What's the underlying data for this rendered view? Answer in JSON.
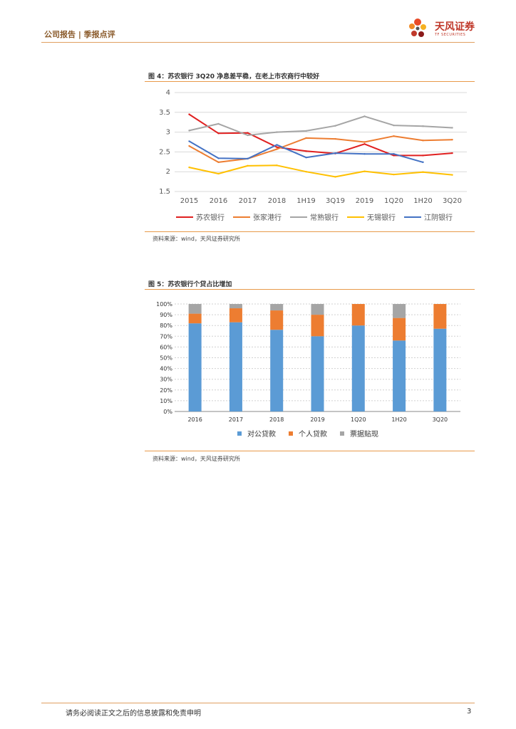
{
  "header": {
    "section": "公司报告 | 季报点评"
  },
  "logo": {
    "name": "天风证券",
    "sub": "TF SECURITIES"
  },
  "figure4": {
    "title": "图 4：苏农银行 3Q20 净息差平稳，在老上市农商行中较好",
    "source": "资料来源：wind，天风证券研究所"
  },
  "figure5": {
    "title": "图 5：苏农银行个贷占比增加",
    "source": "资料来源：wind，天风证券研究所"
  },
  "footer": {
    "disclaimer": "请务必阅读正文之后的信息披露和免责申明",
    "page": "3"
  },
  "chart_data": [
    {
      "type": "line",
      "categories": [
        "2015",
        "2016",
        "2017",
        "2018",
        "1H19",
        "3Q19",
        "2019",
        "1Q20",
        "1H20",
        "3Q20"
      ],
      "ylim": [
        1.5,
        4
      ],
      "yticks": [
        "1.5",
        "2",
        "2.5",
        "3",
        "3.5",
        "4"
      ],
      "legend": "bottom",
      "grid": true,
      "series": [
        {
          "name": "苏农银行",
          "color": "#e02020",
          "values": [
            3.45,
            2.97,
            2.98,
            2.62,
            2.52,
            2.46,
            2.7,
            2.41,
            2.41,
            2.47
          ]
        },
        {
          "name": "张家港行",
          "color": "#ed7d31",
          "values": [
            2.65,
            2.24,
            2.33,
            2.57,
            2.85,
            2.83,
            2.75,
            2.9,
            2.79,
            2.81
          ]
        },
        {
          "name": "常熟银行",
          "color": "#a5a5a5",
          "values": [
            3.04,
            3.21,
            2.92,
            3.0,
            3.03,
            3.16,
            3.4,
            3.17,
            3.15,
            3.11
          ]
        },
        {
          "name": "无锡银行",
          "color": "#ffc000",
          "values": [
            2.11,
            1.95,
            2.15,
            2.16,
            2.0,
            1.87,
            2.01,
            1.93,
            1.99,
            1.92
          ]
        },
        {
          "name": "江阴银行",
          "color": "#4472c4",
          "values": [
            2.77,
            2.34,
            2.33,
            2.68,
            2.36,
            2.47,
            2.45,
            2.45,
            2.24,
            null
          ]
        }
      ]
    },
    {
      "type": "bar",
      "stacked": true,
      "categories": [
        "2016",
        "2017",
        "2018",
        "2019",
        "1Q20",
        "1H20",
        "3Q20"
      ],
      "ylim": [
        0,
        100
      ],
      "yticks": [
        "0%",
        "10%",
        "20%",
        "30%",
        "40%",
        "50%",
        "60%",
        "70%",
        "80%",
        "90%",
        "100%"
      ],
      "legend": "bottom",
      "grid": true,
      "series": [
        {
          "name": "对公贷款",
          "color": "#5b9bd5",
          "values": [
            82,
            83,
            76,
            70,
            80,
            66,
            77
          ]
        },
        {
          "name": "个人贷款",
          "color": "#ed7d31",
          "values": [
            9,
            13,
            18,
            20,
            20,
            21,
            23
          ]
        },
        {
          "name": "票据贴现",
          "color": "#a5a5a5",
          "values": [
            9,
            4,
            6,
            10,
            0,
            13,
            0
          ]
        }
      ]
    }
  ]
}
